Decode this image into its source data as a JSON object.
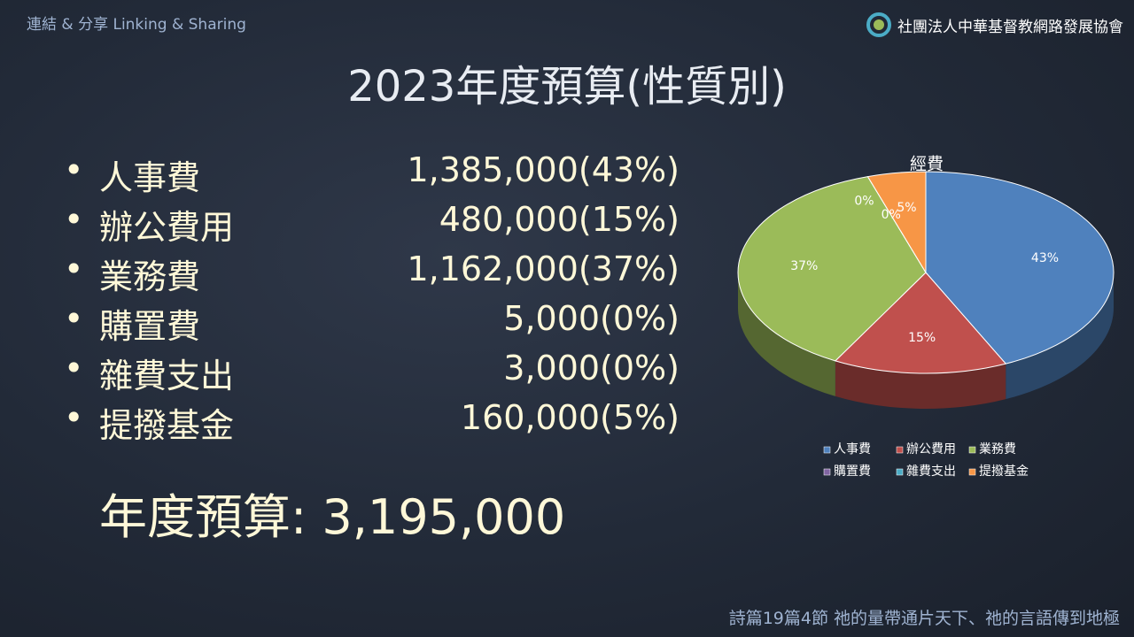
{
  "header": {
    "left": "連結 & 分享 Linking & Sharing",
    "right": "社團法人中華基督教網路發展協會"
  },
  "title": "2023年度預算(性質別)",
  "items": [
    {
      "name": "人事費",
      "amount": "1,385,000(43%)"
    },
    {
      "name": "辦公費用",
      "amount": "480,000(15%)"
    },
    {
      "name": "業務費",
      "amount": "1,162,000(37%)"
    },
    {
      "name": "購置費",
      "amount": "5,000(0%)"
    },
    {
      "name": "雜費支出",
      "amount": "3,000(0%)"
    },
    {
      "name": "提撥基金",
      "amount": "160,000(5%)"
    }
  ],
  "total": "年度預算:  3,195,000",
  "footer": "詩篇19篇4節  祂的量帶通片天下、祂的言語傳到地極",
  "chart_data": {
    "type": "pie",
    "title": "經費",
    "categories": [
      "人事費",
      "辦公費用",
      "業務費",
      "購置費",
      "雜費支出",
      "提撥基金"
    ],
    "values": [
      43,
      15,
      37,
      0,
      0,
      5
    ],
    "value_labels": [
      "43%",
      "15%",
      "37%",
      "0%",
      "0%",
      "5%"
    ],
    "colors": [
      "#4f81bd",
      "#c0504d",
      "#9bbb59",
      "#8064a2",
      "#4bacc6",
      "#f79646"
    ]
  }
}
